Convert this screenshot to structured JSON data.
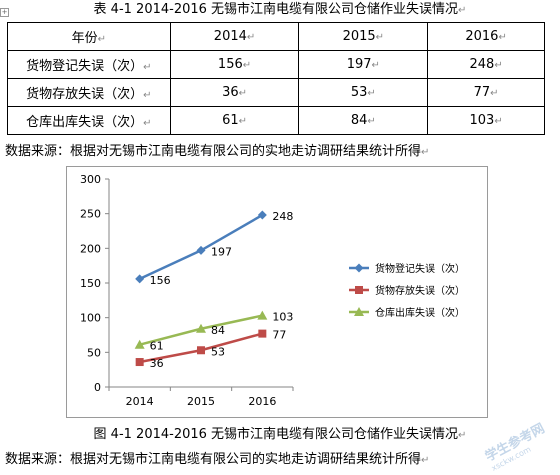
{
  "table": {
    "caption": "表 4-1  2014-2016 无锡市江南电缆有限公司仓储作业失误情况",
    "header": {
      "label": "年份",
      "years": [
        "2014",
        "2015",
        "2016"
      ]
    },
    "rows": [
      {
        "label": "货物登记失误（次）",
        "values": [
          "156",
          "197",
          "248"
        ]
      },
      {
        "label": "货物存放失误（次）",
        "values": [
          "36",
          "53",
          "77"
        ]
      },
      {
        "label": "仓库出库失误（次）",
        "values": [
          "61",
          "84",
          "103"
        ]
      }
    ]
  },
  "source_text": "数据来源：根据对无锡市江南电缆有限公司的实地走访调研结果统计所得",
  "figure_caption": "图 4-1  2014-2016 无锡市江南电缆有限公司仓储作业失误情况",
  "watermark": {
    "text": "学生参考网",
    "sub": "xsckw.com"
  },
  "chart_data": {
    "type": "line",
    "categories": [
      "2014",
      "2015",
      "2016"
    ],
    "series": [
      {
        "name": "货物登记失误（次）",
        "values": [
          156,
          197,
          248
        ],
        "color": "#4a7ebb",
        "marker": "diamond"
      },
      {
        "name": "货物存放失误（次）",
        "values": [
          36,
          53,
          77
        ],
        "color": "#be4b48",
        "marker": "square"
      },
      {
        "name": "仓库出库失误（次）",
        "values": [
          61,
          84,
          103
        ],
        "color": "#98b954",
        "marker": "triangle"
      }
    ],
    "ylim": [
      0,
      300
    ],
    "yticks": [
      0,
      50,
      100,
      150,
      200,
      250,
      300
    ],
    "grid": false,
    "data_labels": true,
    "legend_position": "right"
  }
}
